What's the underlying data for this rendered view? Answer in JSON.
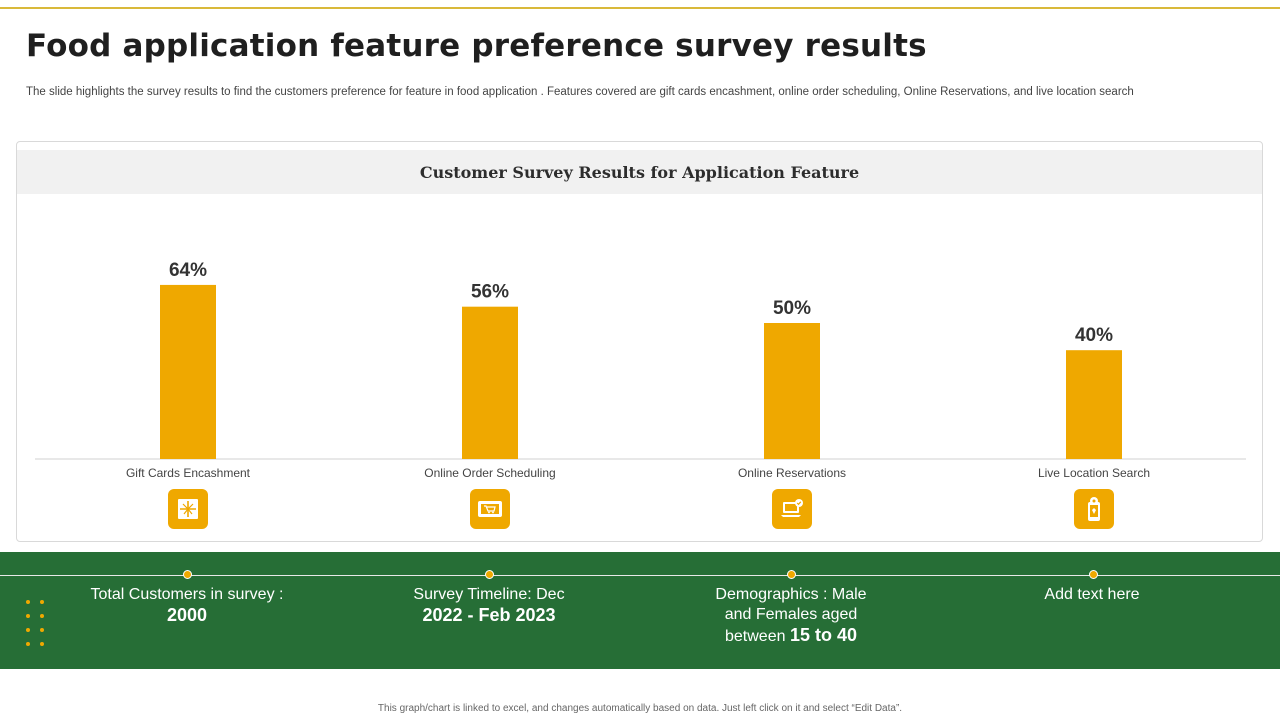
{
  "page": {
    "title": "Food application feature preference survey results",
    "subtitle": "The slide highlights the survey results to find the customers preference for feature in food application . Features covered are gift cards encashment, online order scheduling, Online Reservations, and live location search",
    "footnote": "This graph/chart is linked to excel, and changes automatically based on data. Just left click on it and select “Edit Data”."
  },
  "chart_data": {
    "type": "bar",
    "title": "Customer Survey Results for Application Feature",
    "categories": [
      "Gift Cards Encashment",
      "Online Order Scheduling",
      "Online Reservations",
      "Live Location Search"
    ],
    "values": [
      64,
      56,
      50,
      40
    ],
    "value_labels": [
      "64%",
      "56%",
      "50%",
      "40%"
    ],
    "unit": "%",
    "ylim": [
      0,
      100
    ],
    "grid": false,
    "bar_color": "#efa800"
  },
  "icons": [
    "gift-card-icon",
    "online-order-icon",
    "reservation-laptop-icon",
    "location-phone-icon"
  ],
  "stats": [
    {
      "text": "Total Customers in survey : ",
      "value": "2000"
    },
    {
      "text": "Survey Timeline: Dec ",
      "value": "2022 - Feb 2023"
    },
    {
      "text": "Demographics : Male and Females aged between ",
      "value": "15 to 40"
    },
    {
      "text": "Add text here",
      "value": ""
    }
  ],
  "colors": {
    "accent": "#efa800",
    "band": "#266e36",
    "rule": "#d9b93a"
  }
}
